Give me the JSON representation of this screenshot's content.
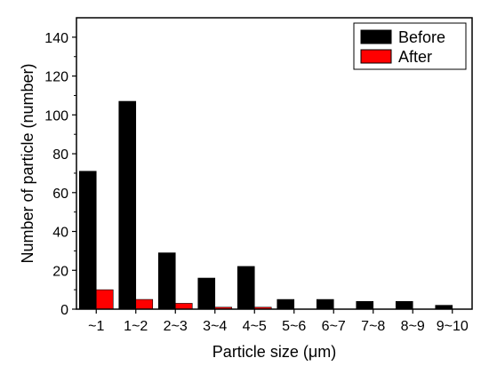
{
  "chart_data": {
    "type": "bar",
    "xlabel": "Particle size (μm)",
    "ylabel": "Number of particle (number)",
    "categories": [
      "~1",
      "1~2",
      "2~3",
      "3~4",
      "4~5",
      "5~6",
      "6~7",
      "7~8",
      "8~9",
      "9~10"
    ],
    "series": [
      {
        "name": "Before",
        "color": "#000000",
        "values": [
          71,
          107,
          29,
          16,
          22,
          5,
          5,
          4,
          4,
          2
        ]
      },
      {
        "name": "After",
        "color": "#ff0000",
        "values": [
          10,
          5,
          3,
          1,
          1,
          0,
          0,
          0,
          0,
          0
        ]
      }
    ],
    "ylim": [
      0,
      150
    ],
    "yticks": [
      0,
      20,
      40,
      60,
      80,
      100,
      120,
      140
    ],
    "grid": false,
    "legend_position": "top-right"
  }
}
